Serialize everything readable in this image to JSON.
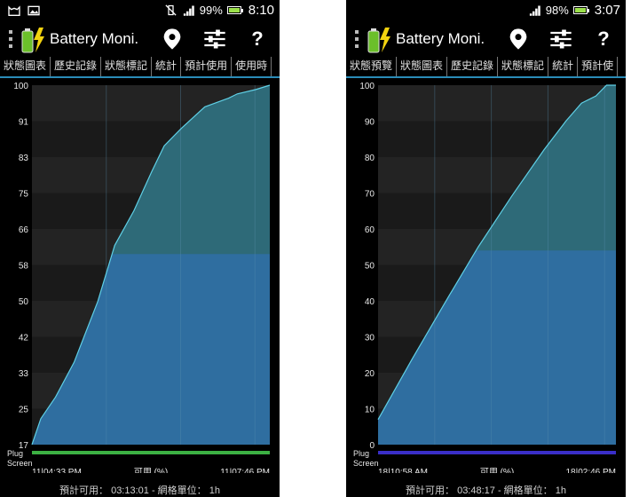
{
  "colors": {
    "background": "#000000",
    "chart_background": "#1e1e1e",
    "used_fill": "#2f6ea0",
    "projection_fill": "#2e6a78",
    "line": "#5fd0e6",
    "tab_indicator": "#3fb8e6",
    "plug_bar_left": "#3cb043",
    "plug_bar_right": "#3a2ec8"
  },
  "screens": [
    {
      "status_bar": {
        "left_icons": [
          "cat-icon",
          "image-icon"
        ],
        "right_icons": [
          "vibrate-off-icon",
          "signal-icon",
          "battery-icon"
        ],
        "battery_percent": "99%",
        "battery_level": 0.99,
        "time": "8:10"
      },
      "action_bar": {
        "app_title": "Battery Moni.",
        "icons": [
          "location-icon",
          "settings-sliders-icon",
          "help-icon"
        ],
        "help_label": "?"
      },
      "tabs": [
        "狀態圖表",
        "歷史記錄",
        "狀態標記",
        "統計",
        "預計使用",
        "使用時"
      ],
      "active_tab": 0,
      "chart_data": {
        "type": "area",
        "y_ticks": [
          "100",
          "91",
          "83",
          "75",
          "66",
          "58",
          "50",
          "42",
          "33",
          "25",
          "17"
        ],
        "ylim": [
          17,
          100
        ],
        "y_range_label": "可用 (%)",
        "x_start_label": "11|04:33 PM",
        "x_end_label": "11|07:46 PM",
        "x_hours": [
          0,
          0.12,
          0.32,
          0.57,
          0.89,
          1.12,
          1.38,
          1.62,
          1.79,
          2.02,
          2.34,
          2.66,
          2.78,
          3.03,
          3.22
        ],
        "values": [
          17,
          23,
          28,
          36,
          50,
          63,
          71,
          80,
          86,
          90,
          95,
          97,
          98,
          99,
          100
        ],
        "projected_threshold": 61,
        "legend_plug": "Plug",
        "legend_screen": "Screen",
        "grid_hours": 3
      },
      "footer": "預計可用： 03:13:01 - 網格單位： 1h"
    },
    {
      "status_bar": {
        "left_icons": [],
        "right_icons": [
          "signal-icon",
          "battery-icon"
        ],
        "battery_percent": "98%",
        "battery_level": 0.98,
        "time": "3:07"
      },
      "action_bar": {
        "app_title": "Battery Moni.",
        "icons": [
          "location-icon",
          "settings-sliders-icon",
          "help-icon"
        ],
        "help_label": "?"
      },
      "tabs": [
        "狀態預覽",
        "狀態圖表",
        "歷史記錄",
        "狀態標記",
        "統計",
        "預計使"
      ],
      "active_tab": 1,
      "chart_data": {
        "type": "area",
        "y_ticks": [
          "100",
          "90",
          "80",
          "70",
          "60",
          "50",
          "40",
          "30",
          "20",
          "10",
          "0"
        ],
        "ylim": [
          0,
          100
        ],
        "y_range_label": "可用 (%)",
        "x_start_label": "18|10:58 AM",
        "x_end_label": "18|02:46 PM",
        "x_hours": [
          0,
          0.55,
          1.12,
          1.6,
          2.13,
          2.65,
          3.0,
          3.25,
          3.48,
          3.65,
          3.8
        ],
        "values": [
          7,
          24,
          41,
          55,
          69,
          82,
          90,
          95,
          97,
          100,
          100
        ],
        "projected_threshold": 54,
        "legend_plug": "Plug",
        "legend_screen": "Screen",
        "grid_hours": 4
      },
      "footer": "預計可用： 03:48:17 - 網格單位： 1h"
    }
  ]
}
